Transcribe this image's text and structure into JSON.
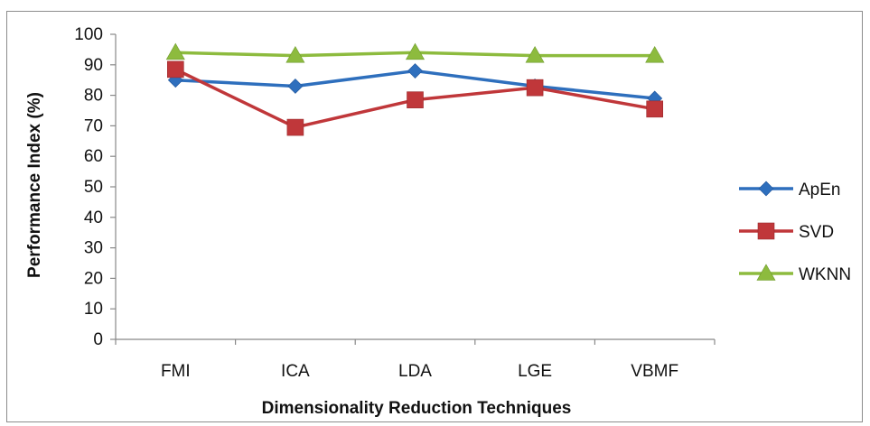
{
  "chart_data": {
    "type": "line",
    "title": "",
    "xlabel": "Dimensionality Reduction Techniques",
    "ylabel": "Performance Index (%)",
    "categories": [
      "FMI",
      "ICA",
      "LDA",
      "LGE",
      "VBMF"
    ],
    "ylim": [
      0,
      100
    ],
    "yticks": [
      0,
      10,
      20,
      30,
      40,
      50,
      60,
      70,
      80,
      90,
      100
    ],
    "grid": false,
    "legend_position": "right",
    "series": [
      {
        "name": "ApEn",
        "values": [
          85,
          83,
          88,
          83,
          79
        ],
        "color": "#2e6fbd",
        "marker": "diamond"
      },
      {
        "name": "SVD",
        "values": [
          88.5,
          69.5,
          78.5,
          82.5,
          75.5
        ],
        "color": "#c0373a",
        "marker": "square"
      },
      {
        "name": "WKNN",
        "values": [
          94,
          93,
          94,
          93,
          93
        ],
        "color": "#8dbb3e",
        "marker": "triangle"
      }
    ]
  }
}
